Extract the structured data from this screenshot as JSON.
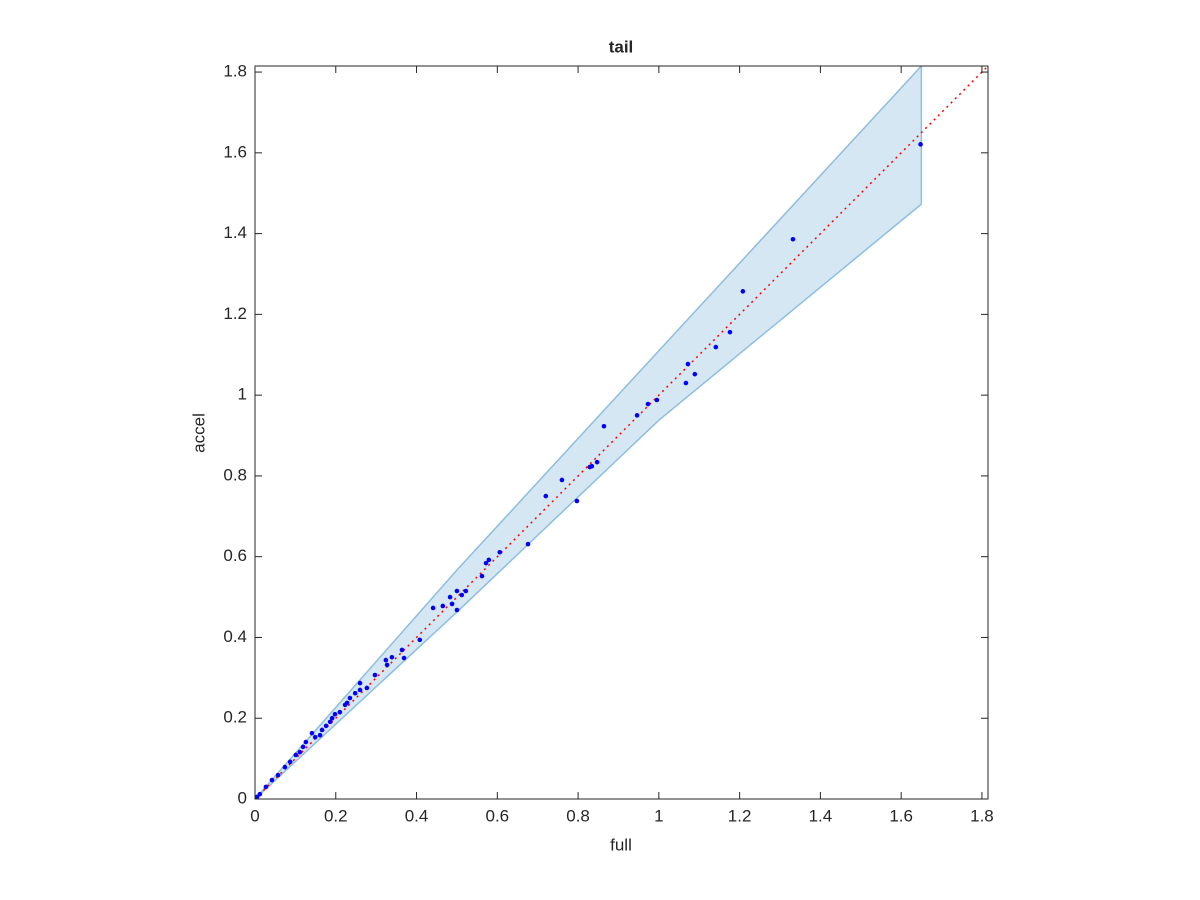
{
  "chart_data": {
    "type": "scatter",
    "title": "tail",
    "xlabel": "full",
    "ylabel": "accel",
    "xlim": [
      0,
      1.815
    ],
    "ylim": [
      0,
      1.815
    ],
    "xticks": [
      0,
      0.2,
      0.4,
      0.6,
      0.8,
      1,
      1.2,
      1.4,
      1.6,
      1.8
    ],
    "yticks": [
      0,
      0.2,
      0.4,
      0.6,
      0.8,
      1,
      1.2,
      1.4,
      1.6,
      1.8
    ],
    "band": {
      "x": [
        0,
        0.5,
        1,
        1.65
      ],
      "upper": [
        0,
        0.567,
        1.11,
        1.815
      ],
      "lower": [
        0,
        0.463,
        0.938,
        1.473
      ],
      "color": "#d6e7f4",
      "edge_color": "#8dbde0"
    },
    "reference_line": {
      "x": [
        0,
        1.815
      ],
      "values": [
        0,
        1.815
      ],
      "color": "#ff0000"
    },
    "series": [
      {
        "color": "#0000ff",
        "x": [
          1.648,
          1.332,
          1.208,
          1.176,
          1.141,
          1.072,
          1.067,
          1.089,
          0.995,
          0.973,
          0.946,
          0.864,
          0.847,
          0.834,
          0.829,
          0.797,
          0.76,
          0.72,
          0.676,
          0.579,
          0.572,
          0.606,
          0.562,
          0.5,
          0.512,
          0.522,
          0.483,
          0.488,
          0.5,
          0.465,
          0.441,
          0.408,
          0.364,
          0.369,
          0.339,
          0.324,
          0.327,
          0.297,
          0.277,
          0.26,
          0.26,
          0.248,
          0.235,
          0.228,
          0.223,
          0.21,
          0.198,
          0.191,
          0.186,
          0.176,
          0.166,
          0.161,
          0.149,
          0.141,
          0.126,
          0.119,
          0.111,
          0.101,
          0.087,
          0.074,
          0.057,
          0.042,
          0.027,
          0.012,
          0.005
        ],
        "values": [
          1.621,
          1.386,
          1.257,
          1.156,
          1.119,
          1.077,
          1.03,
          1.052,
          0.988,
          0.978,
          0.95,
          0.923,
          0.834,
          0.824,
          0.822,
          0.738,
          0.79,
          0.75,
          0.631,
          0.592,
          0.584,
          0.611,
          0.552,
          0.515,
          0.505,
          0.515,
          0.5,
          0.483,
          0.468,
          0.478,
          0.473,
          0.394,
          0.369,
          0.349,
          0.351,
          0.344,
          0.332,
          0.307,
          0.275,
          0.287,
          0.27,
          0.262,
          0.25,
          0.238,
          0.233,
          0.215,
          0.21,
          0.2,
          0.191,
          0.181,
          0.171,
          0.158,
          0.153,
          0.163,
          0.141,
          0.129,
          0.116,
          0.109,
          0.092,
          0.079,
          0.059,
          0.047,
          0.03,
          0.012,
          0.005
        ]
      }
    ]
  }
}
